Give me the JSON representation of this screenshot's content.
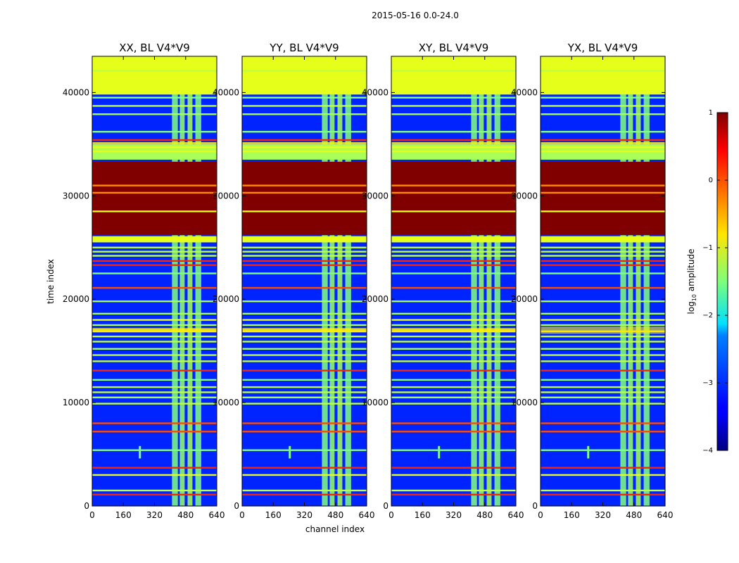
{
  "chart_data": {
    "type": "heatmap",
    "suptitle": "2015-05-16 0.0-24.0",
    "xlabel": "channel index",
    "ylabel": "time index",
    "xlim": [
      0,
      640
    ],
    "ylim": [
      0,
      43500
    ],
    "x_ticks": [
      0,
      160,
      320,
      480,
      640
    ],
    "y_ticks": [
      0,
      10000,
      20000,
      30000,
      40000
    ],
    "panels": [
      {
        "title": "XX, BL V4*V9",
        "diffuse_streak": false
      },
      {
        "title": "YY, BL V4*V9",
        "diffuse_streak": false
      },
      {
        "title": "XY, BL V4*V9",
        "diffuse_streak": false
      },
      {
        "title": "YX, BL V4*V9",
        "diffuse_streak": true
      }
    ],
    "colorbar": {
      "label": "log10 amplitude",
      "label_main": "log",
      "label_sub": "10",
      "label_rest": " amplitude",
      "range": [
        -4,
        1
      ],
      "ticks": [
        1,
        0,
        -1,
        -2,
        -3,
        -4
      ],
      "tick_labels": [
        "1",
        "0",
        "−1",
        "−2",
        "−3",
        "−4"
      ],
      "colormap": "jet"
    },
    "background_log_amplitude": -3.2,
    "rfi_channel_bands": [
      {
        "start": 410,
        "end": 440,
        "log_amplitude": -1.5
      },
      {
        "start": 450,
        "end": 475,
        "log_amplitude": -1.4
      },
      {
        "start": 490,
        "end": 515,
        "log_amplitude": -1.3
      },
      {
        "start": 530,
        "end": 560,
        "log_amplitude": -1.5
      }
    ],
    "time_blocks": [
      {
        "start": 39800,
        "end": 43500,
        "log_amplitude": -1.0
      },
      {
        "start": 33500,
        "end": 35000,
        "log_amplitude": -1.3
      },
      {
        "start": 26200,
        "end": 33300,
        "log_amplitude": 1.0
      },
      {
        "start": 25500,
        "end": 26100,
        "log_amplitude": -1.0
      }
    ],
    "time_lines": [
      {
        "t": 42100,
        "log_amplitude": -1.2
      },
      {
        "t": 39500,
        "log_amplitude": -1.5
      },
      {
        "t": 38700,
        "log_amplitude": -1.2
      },
      {
        "t": 37900,
        "log_amplitude": -1.3
      },
      {
        "t": 36200,
        "log_amplitude": -1.5
      },
      {
        "t": 35400,
        "log_amplitude": 0.2
      },
      {
        "t": 35100,
        "log_amplitude": -0.8
      },
      {
        "t": 34700,
        "log_amplitude": -1.0
      },
      {
        "t": 34300,
        "log_amplitude": -1.0
      },
      {
        "t": 31000,
        "log_amplitude": -0.3
      },
      {
        "t": 30300,
        "log_amplitude": -0.3
      },
      {
        "t": 28500,
        "log_amplitude": -1.0
      },
      {
        "t": 25000,
        "log_amplitude": -1.2
      },
      {
        "t": 24600,
        "log_amplitude": -1.2
      },
      {
        "t": 24200,
        "log_amplitude": -1.2
      },
      {
        "t": 23700,
        "log_amplitude": 0.2
      },
      {
        "t": 23300,
        "log_amplitude": 0.2
      },
      {
        "t": 22500,
        "log_amplitude": -1.5
      },
      {
        "t": 21100,
        "log_amplitude": 0.0
      },
      {
        "t": 19800,
        "log_amplitude": -1.3
      },
      {
        "t": 18600,
        "log_amplitude": -1.3
      },
      {
        "t": 18000,
        "log_amplitude": -1.0
      },
      {
        "t": 17500,
        "log_amplitude": -1.3
      },
      {
        "t": 16900,
        "log_amplitude": -0.7
      },
      {
        "t": 16400,
        "log_amplitude": -1.2
      },
      {
        "t": 15900,
        "log_amplitude": -1.2
      },
      {
        "t": 15200,
        "log_amplitude": -1.3
      },
      {
        "t": 14600,
        "log_amplitude": -1.2
      },
      {
        "t": 14000,
        "log_amplitude": -1.2
      },
      {
        "t": 13100,
        "log_amplitude": 0.2
      },
      {
        "t": 12200,
        "log_amplitude": -1.5
      },
      {
        "t": 11500,
        "log_amplitude": -1.2
      },
      {
        "t": 11000,
        "log_amplitude": -1.2
      },
      {
        "t": 10500,
        "log_amplitude": -1.3
      },
      {
        "t": 9900,
        "log_amplitude": -1.2
      },
      {
        "t": 8000,
        "log_amplitude": 0.0
      },
      {
        "t": 7200,
        "log_amplitude": 0.0
      },
      {
        "t": 5400,
        "log_amplitude": -1.5
      },
      {
        "t": 3700,
        "log_amplitude": 0.2
      },
      {
        "t": 3000,
        "log_amplitude": -1.0
      },
      {
        "t": 1500,
        "log_amplitude": -1.2
      },
      {
        "t": 1100,
        "log_amplitude": 0.2
      }
    ],
    "streak": {
      "t": 17000,
      "log_amplitude": -0.8
    },
    "spike": {
      "channel": 245,
      "t_start": 4600,
      "t_end": 5800,
      "log_amplitude": -1.5
    }
  }
}
